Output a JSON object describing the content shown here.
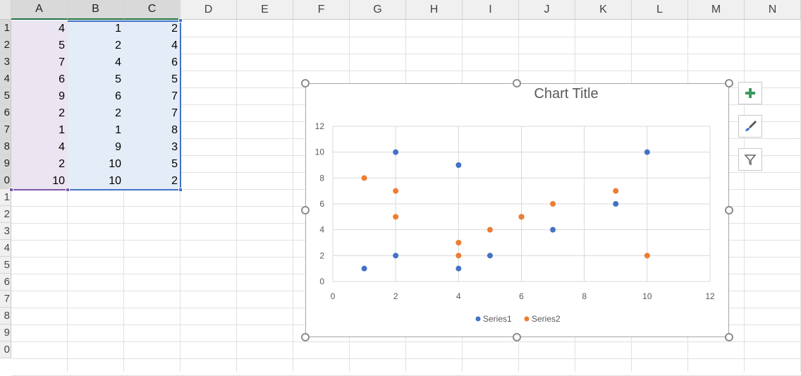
{
  "spreadsheet": {
    "columns": [
      "A",
      "B",
      "C",
      "D",
      "E",
      "F",
      "G",
      "H",
      "I",
      "J",
      "K",
      "L",
      "M",
      "N"
    ],
    "row_labels": [
      "1",
      "2",
      "3",
      "4",
      "5",
      "6",
      "7",
      "8",
      "9",
      "0",
      "1",
      "2",
      "3",
      "4",
      "5",
      "6",
      "7",
      "8",
      "9",
      "0"
    ],
    "data": [
      [
        "4",
        "1",
        "2"
      ],
      [
        "5",
        "2",
        "4"
      ],
      [
        "7",
        "4",
        "6"
      ],
      [
        "6",
        "5",
        "5"
      ],
      [
        "9",
        "6",
        "7"
      ],
      [
        "2",
        "2",
        "7"
      ],
      [
        "1",
        "1",
        "8"
      ],
      [
        "4",
        "9",
        "3"
      ],
      [
        "2",
        "10",
        "5"
      ],
      [
        "10",
        "10",
        "2"
      ]
    ]
  },
  "chart": {
    "title": "Chart Title",
    "side_buttons": [
      "plus-icon",
      "brush-icon",
      "filter-icon"
    ]
  },
  "chart_data": {
    "type": "scatter",
    "title": "Chart Title",
    "xlabel": "",
    "ylabel": "",
    "xlim": [
      0,
      12
    ],
    "ylim": [
      0,
      12
    ],
    "x_ticks": [
      "0",
      "2",
      "4",
      "6",
      "8",
      "10",
      "12"
    ],
    "y_ticks": [
      "0",
      "2",
      "4",
      "6",
      "8",
      "10",
      "12"
    ],
    "grid": true,
    "legend": "bottom",
    "series": [
      {
        "name": "Series1",
        "color": "#4472c4",
        "x": [
          4,
          5,
          7,
          6,
          9,
          2,
          1,
          4,
          2,
          10
        ],
        "y": [
          1,
          2,
          4,
          5,
          6,
          2,
          1,
          9,
          10,
          10
        ]
      },
      {
        "name": "Series2",
        "color": "#ed7d31",
        "x": [
          4,
          5,
          7,
          6,
          9,
          2,
          1,
          4,
          2,
          10
        ],
        "y": [
          2,
          4,
          6,
          5,
          7,
          7,
          8,
          3,
          5,
          2
        ]
      }
    ]
  }
}
